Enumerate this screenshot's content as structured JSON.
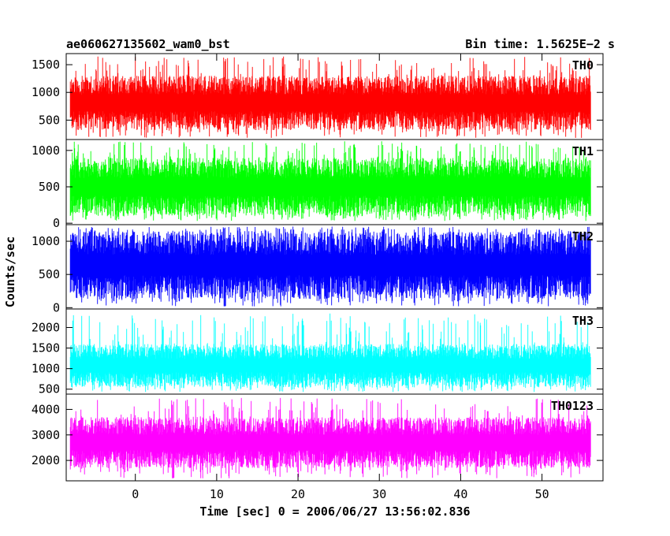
{
  "header": {
    "title": "ae060627135602_wam0_bst",
    "bin_time": "Bin time: 1.5625E−2 s"
  },
  "chart_data": {
    "type": "line",
    "title": "ae060627135602_wam0_bst",
    "subtitle": "Bin time: 1.5625E−2 s",
    "xlabel": "Time [sec] 0 = 2006/06/27 13:56:02.836",
    "ylabel": "Counts/sec",
    "xlim": [
      -8.5,
      57.5
    ],
    "x_data_range": [
      -8,
      56
    ],
    "bin_time": 0.015625,
    "xticks": [
      0,
      10,
      20,
      30,
      40,
      50
    ],
    "xtick_labels": [
      "0",
      "10",
      "20",
      "30",
      "40",
      "50"
    ],
    "grid": false,
    "legend": "none",
    "panels": [
      {
        "name": "TH0",
        "color": "#ff0000",
        "ylim": [
          150,
          1700
        ],
        "yticks": [
          500,
          1000,
          1500
        ],
        "ytick_labels": [
          "500",
          "1000",
          "1500"
        ],
        "typical_range": [
          320,
          1300
        ],
        "min": 180,
        "max": 1650
      },
      {
        "name": "TH1",
        "color": "#00ff00",
        "ylim": [
          -20,
          1150
        ],
        "yticks": [
          0,
          500,
          1000
        ],
        "ytick_labels": [
          "0",
          "500",
          "1000"
        ],
        "typical_range": [
          100,
          900
        ],
        "min": 30,
        "max": 1130
      },
      {
        "name": "TH2",
        "color": "#0000ff",
        "ylim": [
          -20,
          1250
        ],
        "yticks": [
          0,
          500,
          1000
        ],
        "ytick_labels": [
          "0",
          "500",
          "1000"
        ],
        "typical_range": [
          130,
          1150
        ],
        "min": 20,
        "max": 1220
      },
      {
        "name": "TH3",
        "color": "#00ffff",
        "ylim": [
          380,
          2450
        ],
        "yticks": [
          500,
          1000,
          1500,
          2000
        ],
        "ytick_labels": [
          "500",
          "1000",
          "1500",
          "2000"
        ],
        "typical_range": [
          550,
          1600
        ],
        "min": 430,
        "max": 2350
      },
      {
        "name": "TH0123",
        "color": "#ff00ff",
        "ylim": [
          1200,
          4600
        ],
        "yticks": [
          2000,
          3000,
          4000
        ],
        "ytick_labels": [
          "2000",
          "3000",
          "4000"
        ],
        "typical_range": [
          1700,
          3700
        ],
        "min": 1300,
        "max": 4450
      }
    ]
  }
}
